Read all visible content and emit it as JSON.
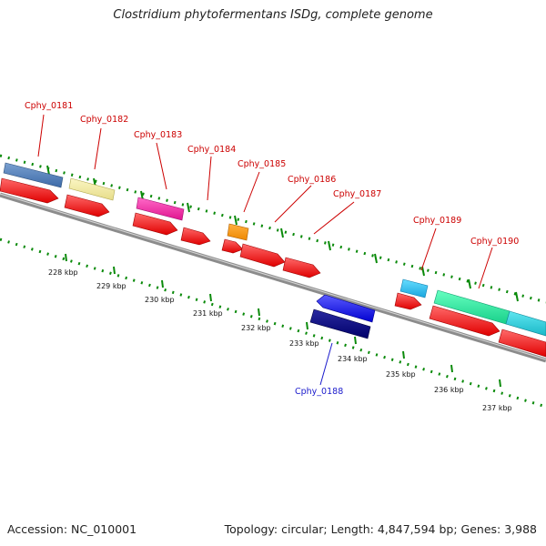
{
  "title": "Clostridium phytofermentans ISDg, complete genome",
  "footer": {
    "accession": "Accession: NC_010001",
    "summary": "Topology: circular; Length: 4,847,594 bp; Genes: 3,988"
  },
  "ticks": [
    "228 kbp",
    "229 kbp",
    "230 kbp",
    "231 kbp",
    "232 kbp",
    "233 kbp",
    "234 kbp",
    "235 kbp",
    "236 kbp",
    "237 kbp"
  ],
  "genes": [
    {
      "name": "Cphy_0181",
      "color": "#2e4fb0",
      "label_color": "#cc0000"
    },
    {
      "name": "Cphy_0182",
      "color": "#cc0000",
      "label_color": "#cc0000"
    },
    {
      "name": "Cphy_0183",
      "color": "#cc0000",
      "label_color": "#cc0000"
    },
    {
      "name": "Cphy_0184",
      "color": "#cc0000",
      "label_color": "#cc0000"
    },
    {
      "name": "Cphy_0185",
      "color": "#cc0000",
      "label_color": "#cc0000"
    },
    {
      "name": "Cphy_0186",
      "color": "#cc0000",
      "label_color": "#cc0000"
    },
    {
      "name": "Cphy_0187",
      "color": "#cc0000",
      "label_color": "#cc0000"
    },
    {
      "name": "Cphy_0188",
      "color": "#1a1acc",
      "label_color": "#1a1acc"
    },
    {
      "name": "Cphy_0189",
      "color": "#cc0000",
      "label_color": "#cc0000"
    },
    {
      "name": "Cphy_0190",
      "color": "#cc0000",
      "label_color": "#cc0000"
    }
  ],
  "colors": {
    "backbone": "#8c8c8c",
    "tick_green": "#0a8a0a",
    "gene_red": "#ff0000"
  }
}
